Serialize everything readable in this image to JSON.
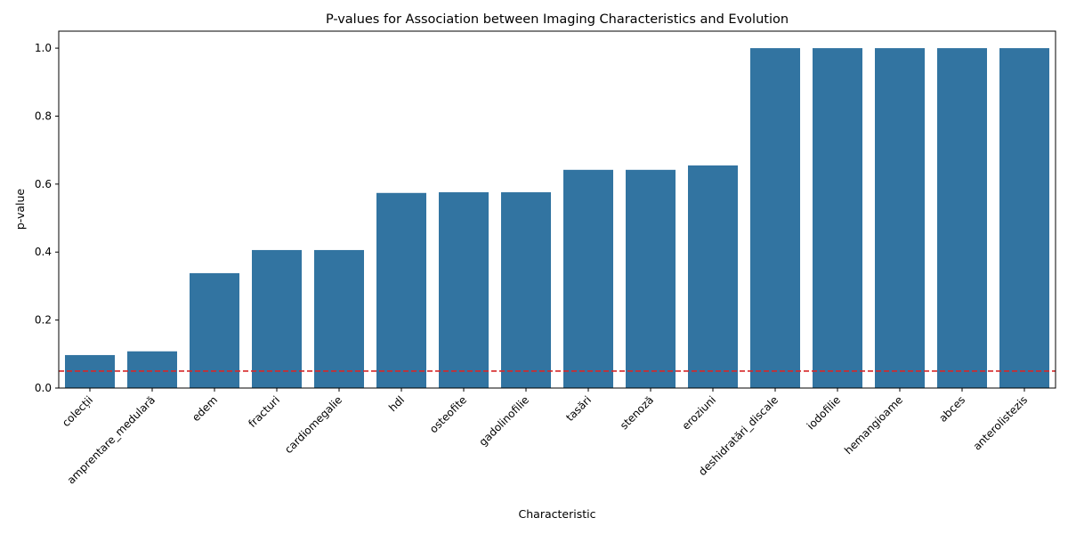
{
  "chart_data": {
    "type": "bar",
    "title": "P-values for Association between Imaging Characteristics and Evolution",
    "xlabel": "Characteristic",
    "ylabel": "p-value",
    "categories": [
      "colecții",
      "amprentare_medulară",
      "edem",
      "fracturi",
      "cardiomegalie",
      "hdl",
      "osteofite",
      "gadolinofilie",
      "tasări",
      "stenoză",
      "eroziuni",
      "deshidratări_discale",
      "iodofilie",
      "hemangioame",
      "abces",
      "anterolistezis"
    ],
    "values": [
      0.097,
      0.108,
      0.338,
      0.406,
      0.406,
      0.574,
      0.576,
      0.576,
      0.642,
      0.642,
      0.655,
      1.0,
      1.0,
      1.0,
      1.0,
      1.0
    ],
    "ylim": [
      0,
      1.05
    ],
    "yticks": [
      "0.0",
      "0.2",
      "0.4",
      "0.6",
      "0.8",
      "1.0"
    ],
    "reference_line": {
      "value": 0.05,
      "style": "dashed",
      "color": "#d62728"
    },
    "bar_color": "#3274a1",
    "grid": false,
    "legend": "none"
  }
}
